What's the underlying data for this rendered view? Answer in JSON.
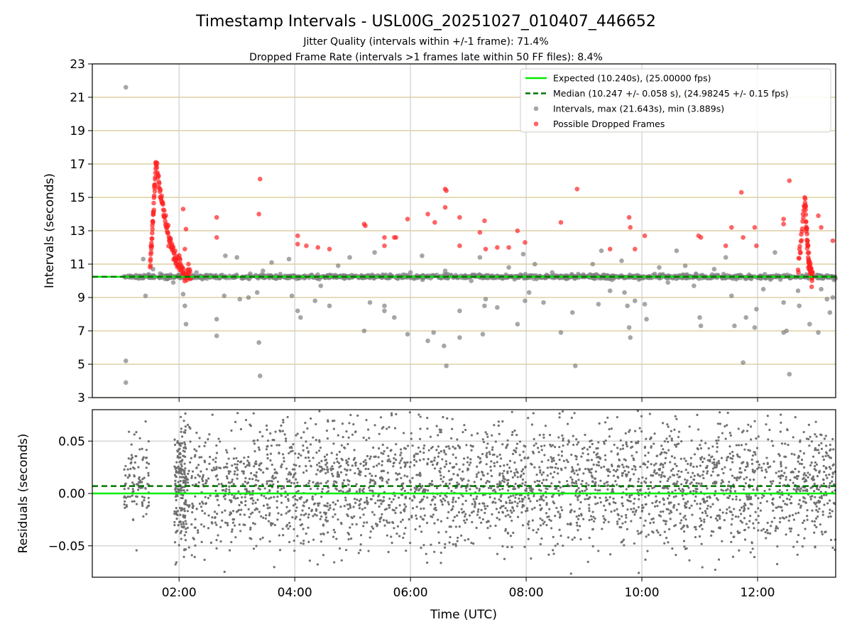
{
  "title": "Timestamp Intervals - USL00G_20251027_010407_446652",
  "subtitle_1": "Jitter Quality (intervals within +/-1 frame): 71.4%",
  "subtitle_2": "Dropped Frame Rate (intervals >1 frames late within 50 FF files): 8.4%",
  "colors": {
    "expected": "#00ee00",
    "median": "#007700",
    "intervals": "#808080",
    "dropped": "#ff2222",
    "hgrid": "#d8c891",
    "vgrid": "#cfcfcf"
  },
  "chart_data": [
    {
      "type": "scatter",
      "name": "intervals-panel",
      "ylabel": "Intervals (seconds)",
      "ylim": [
        3,
        23
      ],
      "xlim_hours": [
        0.5,
        13.35
      ],
      "yticks": [
        "3",
        "5",
        "7",
        "9",
        "11",
        "13",
        "15",
        "17",
        "19",
        "21",
        "23"
      ],
      "ytick_values": [
        3,
        5,
        7,
        9,
        11,
        13,
        15,
        17,
        19,
        21,
        23
      ],
      "xtick_hours": [
        2,
        4,
        6,
        8,
        10,
        12
      ],
      "grid": "on",
      "legend_position": "top-right",
      "legend": [
        "Expected (10.240s), (25.00000 fps)",
        "Median (10.247 +/- 0.058 s), (24.98245 +/- 0.15 fps)",
        "Intervals, max (21.643s), min (3.889s)",
        "Possible Dropped Frames"
      ],
      "expected": 10.24,
      "median": 10.247,
      "stats": {
        "max": 21.643,
        "min": 3.889
      },
      "series": [
        {
          "name": "Intervals, max (21.643s), min (3.889s)",
          "points": [
            [
              1.08,
              21.6
            ],
            [
              1.08,
              5.2
            ],
            [
              1.08,
              3.9
            ],
            [
              1.38,
              11.3
            ],
            [
              1.42,
              9.1
            ],
            [
              1.55,
              10.7
            ],
            [
              1.9,
              9.9
            ],
            [
              2.07,
              9.2
            ],
            [
              2.1,
              8.5
            ],
            [
              2.12,
              7.4
            ],
            [
              2.3,
              10.5
            ],
            [
              2.4,
              10.1
            ],
            [
              2.65,
              7.7
            ],
            [
              2.65,
              6.7
            ],
            [
              2.78,
              9.1
            ],
            [
              2.8,
              11.5
            ],
            [
              3.0,
              11.4
            ],
            [
              3.05,
              8.9
            ],
            [
              3.2,
              9.0
            ],
            [
              3.35,
              9.3
            ],
            [
              3.38,
              6.3
            ],
            [
              3.4,
              4.3
            ],
            [
              3.45,
              10.6
            ],
            [
              3.6,
              11.1
            ],
            [
              3.75,
              10.4
            ],
            [
              3.9,
              11.3
            ],
            [
              3.95,
              9.1
            ],
            [
              4.05,
              8.2
            ],
            [
              4.1,
              7.8
            ],
            [
              4.35,
              8.8
            ],
            [
              4.45,
              9.7
            ],
            [
              4.6,
              8.5
            ],
            [
              4.75,
              10.9
            ],
            [
              4.95,
              11.4
            ],
            [
              5.2,
              7.0
            ],
            [
              5.3,
              8.7
            ],
            [
              5.38,
              11.7
            ],
            [
              5.55,
              8.5
            ],
            [
              5.55,
              8.2
            ],
            [
              5.72,
              7.8
            ],
            [
              5.85,
              10.2
            ],
            [
              5.95,
              6.8
            ],
            [
              6.0,
              10.5
            ],
            [
              6.2,
              11.5
            ],
            [
              6.3,
              6.4
            ],
            [
              6.4,
              6.9
            ],
            [
              6.58,
              6.1
            ],
            [
              6.62,
              4.9
            ],
            [
              6.6,
              10.6
            ],
            [
              6.85,
              8.2
            ],
            [
              6.85,
              6.6
            ],
            [
              7.05,
              10.0
            ],
            [
              7.2,
              11.4
            ],
            [
              7.25,
              6.8
            ],
            [
              7.28,
              8.5
            ],
            [
              7.3,
              8.9
            ],
            [
              7.5,
              8.4
            ],
            [
              7.7,
              10.8
            ],
            [
              7.85,
              7.4
            ],
            [
              7.95,
              11.6
            ],
            [
              7.98,
              8.8
            ],
            [
              8.05,
              9.3
            ],
            [
              8.15,
              11.0
            ],
            [
              8.3,
              8.7
            ],
            [
              8.45,
              10.5
            ],
            [
              8.6,
              6.9
            ],
            [
              8.8,
              8.1
            ],
            [
              8.85,
              4.9
            ],
            [
              8.9,
              10.4
            ],
            [
              9.15,
              11.0
            ],
            [
              9.25,
              8.6
            ],
            [
              9.3,
              11.8
            ],
            [
              9.45,
              9.4
            ],
            [
              9.65,
              11.2
            ],
            [
              9.7,
              9.3
            ],
            [
              9.75,
              8.5
            ],
            [
              9.78,
              7.2
            ],
            [
              9.8,
              6.6
            ],
            [
              9.88,
              8.8
            ],
            [
              10.05,
              8.6
            ],
            [
              10.08,
              7.7
            ],
            [
              10.3,
              10.8
            ],
            [
              10.45,
              9.9
            ],
            [
              10.6,
              11.8
            ],
            [
              10.75,
              10.9
            ],
            [
              10.9,
              9.7
            ],
            [
              11.0,
              7.8
            ],
            [
              11.02,
              7.3
            ],
            [
              11.25,
              10.7
            ],
            [
              11.45,
              11.4
            ],
            [
              11.55,
              9.1
            ],
            [
              11.6,
              7.3
            ],
            [
              11.75,
              5.1
            ],
            [
              11.8,
              7.8
            ],
            [
              11.95,
              7.2
            ],
            [
              11.98,
              8.3
            ],
            [
              12.1,
              9.5
            ],
            [
              12.3,
              11.7
            ],
            [
              12.45,
              8.7
            ],
            [
              12.45,
              6.9
            ],
            [
              12.5,
              7.0
            ],
            [
              12.55,
              4.4
            ],
            [
              12.7,
              9.4
            ],
            [
              12.72,
              8.5
            ],
            [
              12.9,
              7.4
            ],
            [
              13.05,
              6.9
            ],
            [
              13.1,
              9.5
            ],
            [
              13.25,
              8.1
            ],
            [
              13.2,
              8.9
            ],
            [
              13.3,
              9.0
            ]
          ]
        },
        {
          "name": "Possible Dropped Frames",
          "points": [
            [
              2.07,
              14.3
            ],
            [
              2.12,
              13.1
            ],
            [
              2.1,
              11.9
            ],
            [
              2.65,
              13.8
            ],
            [
              2.65,
              12.6
            ],
            [
              3.4,
              16.1
            ],
            [
              3.38,
              14.0
            ],
            [
              4.05,
              12.7
            ],
            [
              4.05,
              12.2
            ],
            [
              4.2,
              12.1
            ],
            [
              4.4,
              12.0
            ],
            [
              4.6,
              11.9
            ],
            [
              5.2,
              13.4
            ],
            [
              5.22,
              13.3
            ],
            [
              5.55,
              12.6
            ],
            [
              5.55,
              12.1
            ],
            [
              5.72,
              12.6
            ],
            [
              5.75,
              12.6
            ],
            [
              5.95,
              13.7
            ],
            [
              6.3,
              14.0
            ],
            [
              6.42,
              13.5
            ],
            [
              6.6,
              15.5
            ],
            [
              6.62,
              15.4
            ],
            [
              6.6,
              14.4
            ],
            [
              6.85,
              13.8
            ],
            [
              6.85,
              12.1
            ],
            [
              7.2,
              12.9
            ],
            [
              7.28,
              13.6
            ],
            [
              7.3,
              11.9
            ],
            [
              7.5,
              12.0
            ],
            [
              7.7,
              12.0
            ],
            [
              7.85,
              13.0
            ],
            [
              7.98,
              12.3
            ],
            [
              8.6,
              13.5
            ],
            [
              8.88,
              15.5
            ],
            [
              9.45,
              11.9
            ],
            [
              9.78,
              13.8
            ],
            [
              9.8,
              13.2
            ],
            [
              9.88,
              11.9
            ],
            [
              10.05,
              12.7
            ],
            [
              10.98,
              12.7
            ],
            [
              11.02,
              12.6
            ],
            [
              11.45,
              12.1
            ],
            [
              11.55,
              13.2
            ],
            [
              11.72,
              15.3
            ],
            [
              11.75,
              12.6
            ],
            [
              11.95,
              13.2
            ],
            [
              11.98,
              12.1
            ],
            [
              12.45,
              13.7
            ],
            [
              12.45,
              13.4
            ],
            [
              12.55,
              16.0
            ],
            [
              13.05,
              13.9
            ],
            [
              13.1,
              13.2
            ],
            [
              13.3,
              12.4
            ]
          ]
        }
      ]
    },
    {
      "type": "scatter",
      "name": "residuals-panel",
      "xlabel": "Time (UTC)",
      "ylabel": "Residuals (seconds)",
      "ylim": [
        -0.08,
        0.08
      ],
      "xlim_hours": [
        0.5,
        13.35
      ],
      "yticks": [
        "−0.05",
        "0.00",
        "0.05"
      ],
      "ytick_values": [
        -0.05,
        0.0,
        0.05
      ],
      "xticks": [
        "02:00",
        "04:00",
        "06:00",
        "08:00",
        "10:00",
        "12:00"
      ],
      "xtick_hours": [
        2,
        4,
        6,
        8,
        10,
        12
      ],
      "expected": 0.0,
      "median": 0.007
    }
  ]
}
